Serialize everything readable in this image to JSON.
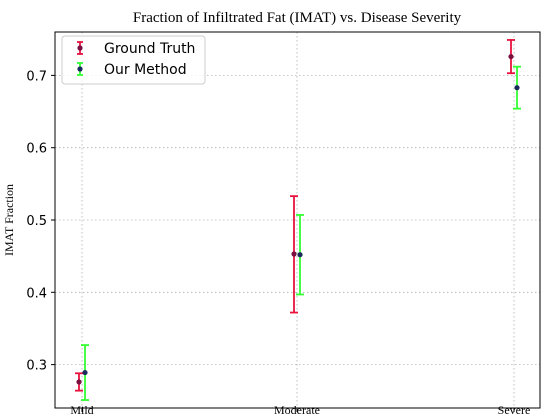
{
  "chart_data": {
    "type": "scatter",
    "title": "Fraction of Infiltrated Fat (IMAT) vs. Disease Severity",
    "xlabel": "",
    "ylabel": "IMAT Fraction",
    "categories": [
      "Mild",
      "Moderate",
      "Severe"
    ],
    "ylim": [
      0.24,
      0.76
    ],
    "yticks": [
      0.3,
      0.4,
      0.5,
      0.6,
      0.7
    ],
    "ytick_labels": [
      "0.3",
      "0.4",
      "0.5",
      "0.6",
      "0.7"
    ],
    "grid": true,
    "legend_position": "top-left",
    "series": [
      {
        "name": "Ground Truth",
        "color": "#e8123c",
        "marker_color": "#7a1040",
        "values": [
          0.276,
          0.453,
          0.726
        ],
        "lower": [
          0.264,
          0.372,
          0.703
        ],
        "upper": [
          0.288,
          0.533,
          0.749
        ]
      },
      {
        "name": "Our Method",
        "color": "#33ff33",
        "marker_color": "#1a2a5a",
        "values": [
          0.289,
          0.452,
          0.683
        ],
        "lower": [
          0.251,
          0.397,
          0.654
        ],
        "upper": [
          0.327,
          0.507,
          0.712
        ]
      }
    ]
  }
}
